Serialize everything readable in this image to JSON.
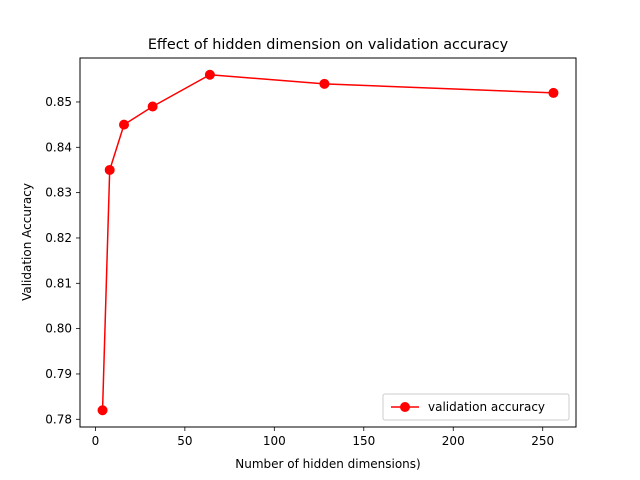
{
  "chart_data": {
    "type": "line",
    "title": "Effect of hidden dimension on validation accuracy",
    "xlabel": "Number of hidden dimensions)",
    "ylabel": "Validation Accuracy",
    "xlim": [
      -8.6,
      268.6
    ],
    "ylim": [
      0.7783,
      0.8597
    ],
    "xticks": [
      0,
      50,
      100,
      150,
      200,
      250
    ],
    "xtick_labels": [
      "0",
      "50",
      "100",
      "150",
      "200",
      "250"
    ],
    "yticks": [
      0.78,
      0.79,
      0.8,
      0.81,
      0.82,
      0.83,
      0.84,
      0.85
    ],
    "ytick_labels": [
      "0.78",
      "0.79",
      "0.80",
      "0.81",
      "0.82",
      "0.83",
      "0.84",
      "0.85"
    ],
    "grid": false,
    "legend_position": "lower-right",
    "series": [
      {
        "name": "validation accuracy",
        "color": "#ff0000",
        "marker": "circle",
        "x": [
          4,
          8,
          16,
          32,
          64,
          128,
          256
        ],
        "y": [
          0.782,
          0.835,
          0.845,
          0.849,
          0.856,
          0.854,
          0.852
        ]
      }
    ]
  }
}
